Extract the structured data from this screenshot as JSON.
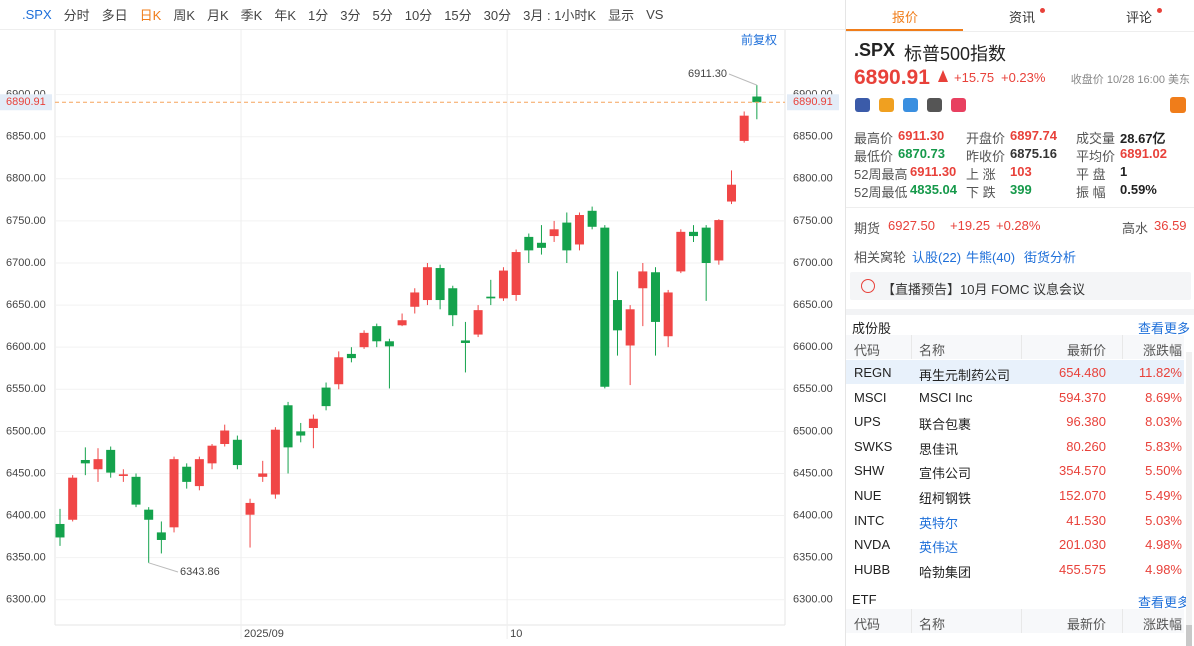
{
  "toolbar": {
    "items": [
      ".SPX",
      "分时",
      "多日",
      "日K",
      "周K",
      "月K",
      "季K",
      "年K",
      "1分",
      "3分",
      "5分",
      "10分",
      "15分",
      "30分",
      "3月 : 1小时K",
      "显示",
      "VS"
    ],
    "active": 3
  },
  "chart_data": {
    "type": "candlestick",
    "categories": [
      null,
      null,
      null,
      null,
      null,
      null,
      null,
      null,
      null,
      null,
      null,
      null,
      null,
      null,
      null,
      "2025/09",
      null,
      null,
      null,
      null,
      null,
      null,
      null,
      null,
      null,
      null,
      null,
      null,
      null,
      null,
      null,
      null,
      null,
      null,
      null,
      null,
      "10",
      null,
      null,
      null,
      null,
      null,
      null,
      null,
      null,
      null,
      null,
      null,
      null,
      null,
      null,
      null,
      null,
      null,
      null,
      null
    ],
    "open": [
      6390,
      6395,
      6466,
      6455,
      6478,
      6447,
      6446,
      6407,
      6380,
      6386,
      6458,
      6435,
      6462,
      6485,
      6490,
      6401,
      6446,
      6425,
      6531,
      6500,
      6504,
      6552,
      6556,
      6592,
      6600,
      6625,
      6607,
      6626,
      6648,
      6656,
      6694,
      6670,
      6608,
      6615,
      6660,
      6658,
      6662,
      6731,
      6724,
      6732,
      6748,
      6722,
      6762,
      6742,
      6656,
      6602,
      6670,
      6689,
      6613,
      6690,
      6737,
      6742,
      6703,
      6773,
      6845,
      6897.74
    ],
    "high": [
      6408,
      6448,
      6481,
      6480,
      6482,
      6455,
      6450,
      6410,
      6393,
      6470,
      6462,
      6470,
      6485,
      6508,
      6495,
      6420,
      6465,
      6505,
      6535,
      6510,
      6520,
      6558,
      6595,
      6600,
      6620,
      6628,
      6610,
      6640,
      6670,
      6700,
      6698,
      6673,
      6630,
      6650,
      6680,
      6695,
      6716,
      6735,
      6745,
      6750,
      6760,
      6760,
      6767,
      6745,
      6690,
      6650,
      6700,
      6695,
      6668,
      6740,
      6745,
      6745,
      6752,
      6810,
      6880,
      6911.3
    ],
    "low": [
      6364,
      6393,
      6448,
      6440,
      6445,
      6440,
      6410,
      6343.86,
      6355,
      6380,
      6432,
      6430,
      6455,
      6482,
      6455,
      6362,
      6440,
      6420,
      6450,
      6487,
      6480,
      6525,
      6550,
      6582,
      6598,
      6600,
      6551,
      6625,
      6640,
      6650,
      6645,
      6625,
      6570,
      6612,
      6650,
      6655,
      6655,
      6700,
      6710,
      6725,
      6700,
      6715,
      6740,
      6551,
      6590,
      6555,
      6625,
      6590,
      6600,
      6688,
      6725,
      6655,
      6698,
      6770,
      6843,
      6870.73
    ],
    "close": [
      6374,
      6445,
      6462,
      6467,
      6451,
      6449,
      6413,
      6395,
      6371,
      6467,
      6440,
      6467,
      6483,
      6501,
      6460,
      6415,
      6450,
      6502,
      6481,
      6495,
      6515,
      6530,
      6588,
      6587,
      6617,
      6607,
      6601,
      6632,
      6665,
      6695,
      6656,
      6638,
      6605,
      6644,
      6658,
      6691,
      6713,
      6715,
      6718,
      6740,
      6715,
      6757,
      6743,
      6553,
      6620,
      6645,
      6690,
      6630,
      6665,
      6737,
      6732,
      6700,
      6751,
      6793,
      6875,
      6890.91
    ],
    "up_color": "#f04646",
    "down_color": "#14a24c",
    "ylim": [
      6270,
      6953
    ],
    "yticks": [
      {
        "value": 6300,
        "label": "6300.00"
      },
      {
        "value": 6350,
        "label": "6350.00"
      },
      {
        "value": 6400,
        "label": "6400.00"
      },
      {
        "value": 6450,
        "label": "6450.00"
      },
      {
        "value": 6500,
        "label": "6500.00"
      },
      {
        "value": 6550,
        "label": "6550.00"
      },
      {
        "value": 6600,
        "label": "6600.00"
      },
      {
        "value": 6650,
        "label": "6650.00"
      },
      {
        "value": 6700,
        "label": "6700.00"
      },
      {
        "value": 6750,
        "label": "6750.00"
      },
      {
        "value": 6800,
        "label": "6800.00"
      },
      {
        "value": 6850,
        "label": "6850.00"
      },
      {
        "value": 6900,
        "label": "6900.00"
      }
    ],
    "grid": true,
    "last_price": 6890.91,
    "last_price_color": "#f5a45c",
    "max_label": "6911.30",
    "min_label": "6343.86",
    "adjust_label": "前复权"
  },
  "tabs": [
    {
      "label": "报价"
    },
    {
      "label": "资讯",
      "dot": true
    },
    {
      "label": "评论",
      "dot": true
    }
  ],
  "quote": {
    "symbol": ".SPX",
    "name": "标普500指数",
    "price": "6890.91",
    "change": "+15.75",
    "pct": "+0.23%",
    "time": "收盘价 10/28 16:00 美东",
    "stats": [
      [
        {
          "label": "最高价",
          "value": "6911.30",
          "color": "#e8413a"
        },
        {
          "label": "最低价",
          "value": "6870.73",
          "color": "#15994a"
        },
        {
          "label": "52周最高",
          "value": "6911.30",
          "color": "#e8413a"
        },
        {
          "label": "52周最低",
          "value": "4835.04",
          "color": "#15994a"
        }
      ],
      [
        {
          "label": "开盘价",
          "value": "6897.74",
          "color": "#e8413a"
        },
        {
          "label": "昨收价",
          "value": "6875.16",
          "color": "#333333"
        },
        {
          "label": "上 涨",
          "value": "103",
          "color": "#e8413a"
        },
        {
          "label": "下 跌",
          "value": "399",
          "color": "#15994a"
        }
      ],
      [
        {
          "label": "成交量",
          "value": "28.67亿",
          "color": "#222222"
        },
        {
          "label": "平均价",
          "value": "6891.02",
          "color": "#e8413a"
        },
        {
          "label": "平 盘",
          "value": "1",
          "color": "#222222"
        },
        {
          "label": "振 幅",
          "value": "0.59%",
          "color": "#222222"
        }
      ]
    ],
    "futures": {
      "label": "期货",
      "price": "6927.50",
      "change": "+19.25",
      "pct": "+0.28%",
      "premium_label": "高水",
      "premium": "36.59"
    },
    "warrants": {
      "label": "相关窝轮",
      "links": [
        "认股(22)",
        "牛熊(40)",
        "街货分析"
      ]
    },
    "banner": "【直播预告】10月 FOMC 议息会议"
  },
  "constituents": {
    "title": "成份股",
    "more": "查看更多",
    "columns": [
      "代码",
      "名称",
      "最新价",
      "涨跌幅"
    ],
    "rows": [
      {
        "code": "REGN",
        "name": "再生元制药公司",
        "price": "654.480",
        "change": "11.82%"
      },
      {
        "code": "MSCI",
        "name": "MSCI Inc",
        "price": "594.370",
        "change": "8.69%"
      },
      {
        "code": "UPS",
        "name": "联合包裹",
        "price": "96.380",
        "change": "8.03%"
      },
      {
        "code": "SWKS",
        "name": "思佳讯",
        "price": "80.260",
        "change": "5.83%"
      },
      {
        "code": "SHW",
        "name": "宣伟公司",
        "price": "354.570",
        "change": "5.50%"
      },
      {
        "code": "NUE",
        "name": "纽柯钢铁",
        "price": "152.070",
        "change": "5.49%"
      },
      {
        "code": "INTC",
        "name": "英特尔",
        "price": "41.530",
        "change": "5.03%",
        "link": true
      },
      {
        "code": "NVDA",
        "name": "英伟达",
        "price": "201.030",
        "change": "4.98%",
        "link": true
      },
      {
        "code": "HUBB",
        "name": "哈勃集团",
        "price": "455.575",
        "change": "4.98%"
      }
    ]
  },
  "etf": {
    "title": "ETF",
    "more": "查看更多",
    "columns": [
      "代码",
      "名称",
      "最新价",
      "涨跌幅"
    ]
  }
}
